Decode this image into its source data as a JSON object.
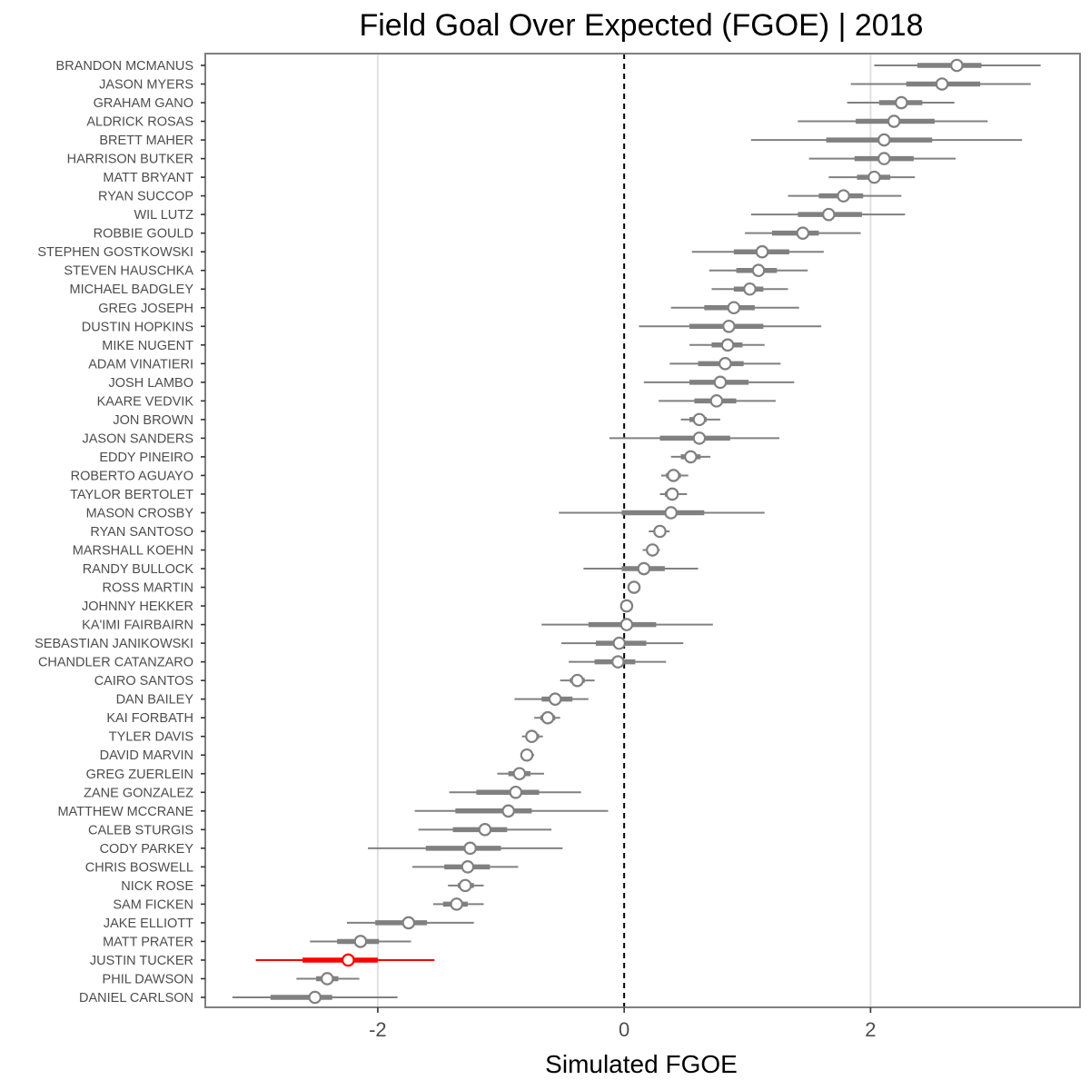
{
  "chart_data": {
    "type": "scatter",
    "title": "Field Goal Over Expected (FGOE) | 2018",
    "xlabel": "Simulated FGOE",
    "ylabel": "",
    "xlim": [
      -3.4,
      3.7
    ],
    "x_ticks": [
      {
        "value": -2,
        "label": "-2"
      },
      {
        "value": 0,
        "label": "0"
      },
      {
        "value": 2,
        "label": "2"
      }
    ],
    "reference_line": {
      "x": 0,
      "style": "dashed"
    },
    "grid": "vertical major",
    "colors": {
      "default": "#808080",
      "highlight": "#ff0000",
      "point_fill": "#ffffff",
      "frame": "#7f7f7f",
      "grid": "#e0e0e0"
    },
    "highlight_player": "JUSTIN TUCKER",
    "series_encoding": "point = median, thick bar = inner interval, thin line = outer interval",
    "players": [
      {
        "name": "BRANDON MCMANUS",
        "median": 2.7,
        "inner": [
          2.38,
          2.9
        ],
        "outer": [
          2.03,
          3.38
        ]
      },
      {
        "name": "JASON MYERS",
        "median": 2.58,
        "inner": [
          2.29,
          2.89
        ],
        "outer": [
          1.84,
          3.3
        ]
      },
      {
        "name": "GRAHAM GANO",
        "median": 2.25,
        "inner": [
          2.07,
          2.42
        ],
        "outer": [
          1.81,
          2.68
        ]
      },
      {
        "name": "ALDRICK ROSAS",
        "median": 2.19,
        "inner": [
          1.88,
          2.52
        ],
        "outer": [
          1.41,
          2.95
        ]
      },
      {
        "name": "BRETT MAHER",
        "median": 2.11,
        "inner": [
          1.64,
          2.5
        ],
        "outer": [
          1.03,
          3.23
        ]
      },
      {
        "name": "HARRISON BUTKER",
        "median": 2.11,
        "inner": [
          1.87,
          2.35
        ],
        "outer": [
          1.5,
          2.69
        ]
      },
      {
        "name": "MATT BRYANT",
        "median": 2.03,
        "inner": [
          1.89,
          2.16
        ],
        "outer": [
          1.66,
          2.36
        ]
      },
      {
        "name": "RYAN SUCCOP",
        "median": 1.78,
        "inner": [
          1.58,
          1.94
        ],
        "outer": [
          1.33,
          2.25
        ]
      },
      {
        "name": "WIL LUTZ",
        "median": 1.66,
        "inner": [
          1.41,
          1.93
        ],
        "outer": [
          1.03,
          2.28
        ]
      },
      {
        "name": "ROBBIE GOULD",
        "median": 1.45,
        "inner": [
          1.2,
          1.58
        ],
        "outer": [
          0.98,
          1.92
        ]
      },
      {
        "name": "STEPHEN GOSTKOWSKI",
        "median": 1.12,
        "inner": [
          0.89,
          1.34
        ],
        "outer": [
          0.55,
          1.62
        ]
      },
      {
        "name": "STEVEN HAUSCHKA",
        "median": 1.09,
        "inner": [
          0.91,
          1.24
        ],
        "outer": [
          0.69,
          1.49
        ]
      },
      {
        "name": "MICHAEL BADGLEY",
        "median": 1.02,
        "inner": [
          0.89,
          1.13
        ],
        "outer": [
          0.71,
          1.33
        ]
      },
      {
        "name": "GREG JOSEPH",
        "median": 0.89,
        "inner": [
          0.65,
          1.06
        ],
        "outer": [
          0.38,
          1.42
        ]
      },
      {
        "name": "DUSTIN HOPKINS",
        "median": 0.85,
        "inner": [
          0.53,
          1.13
        ],
        "outer": [
          0.12,
          1.6
        ]
      },
      {
        "name": "MIKE NUGENT",
        "median": 0.84,
        "inner": [
          0.71,
          0.96
        ],
        "outer": [
          0.53,
          1.14
        ]
      },
      {
        "name": "ADAM VINATIERI",
        "median": 0.82,
        "inner": [
          0.6,
          0.97
        ],
        "outer": [
          0.37,
          1.27
        ]
      },
      {
        "name": "JOSH LAMBO",
        "median": 0.78,
        "inner": [
          0.53,
          1.01
        ],
        "outer": [
          0.16,
          1.38
        ]
      },
      {
        "name": "KAARE VEDVIK",
        "median": 0.75,
        "inner": [
          0.57,
          0.91
        ],
        "outer": [
          0.28,
          1.23
        ]
      },
      {
        "name": "JON BROWN",
        "median": 0.61,
        "inner": [
          0.53,
          0.67
        ],
        "outer": [
          0.46,
          0.78
        ]
      },
      {
        "name": "JASON SANDERS",
        "median": 0.61,
        "inner": [
          0.29,
          0.86
        ],
        "outer": [
          -0.12,
          1.26
        ]
      },
      {
        "name": "EDDY PINEIRO",
        "median": 0.54,
        "inner": [
          0.46,
          0.62
        ],
        "outer": [
          0.38,
          0.7
        ]
      },
      {
        "name": "ROBERTO AGUAYO",
        "median": 0.4,
        "inner": [
          0.34,
          0.46
        ],
        "outer": [
          0.3,
          0.52
        ]
      },
      {
        "name": "TAYLOR BERTOLET",
        "median": 0.39,
        "inner": [
          0.33,
          0.44
        ],
        "outer": [
          0.29,
          0.51
        ]
      },
      {
        "name": "MASON CROSBY",
        "median": 0.38,
        "inner": [
          -0.02,
          0.65
        ],
        "outer": [
          -0.53,
          1.14
        ]
      },
      {
        "name": "RYAN SANTOSO",
        "median": 0.29,
        "inner": [
          0.24,
          0.33
        ],
        "outer": [
          0.2,
          0.37
        ]
      },
      {
        "name": "MARSHALL KOEHN",
        "median": 0.23,
        "inner": [
          0.19,
          0.27
        ],
        "outer": [
          0.15,
          0.29
        ]
      },
      {
        "name": "RANDY BULLOCK",
        "median": 0.16,
        "inner": [
          -0.02,
          0.33
        ],
        "outer": [
          -0.33,
          0.6
        ]
      },
      {
        "name": "ROSS MARTIN",
        "median": 0.08,
        "inner": [
          0.06,
          0.1
        ],
        "outer": [
          0.05,
          0.11
        ]
      },
      {
        "name": "JOHNNY HEKKER",
        "median": 0.02,
        "inner": [
          0.0,
          0.04
        ],
        "outer": [
          -0.01,
          0.05
        ]
      },
      {
        "name": "KA'IMI FAIRBAIRN",
        "median": 0.02,
        "inner": [
          -0.29,
          0.26
        ],
        "outer": [
          -0.67,
          0.72
        ]
      },
      {
        "name": "SEBASTIAN JANIKOWSKI",
        "median": -0.04,
        "inner": [
          -0.23,
          0.18
        ],
        "outer": [
          -0.51,
          0.48
        ]
      },
      {
        "name": "CHANDLER CATANZARO",
        "median": -0.05,
        "inner": [
          -0.24,
          0.09
        ],
        "outer": [
          -0.45,
          0.34
        ]
      },
      {
        "name": "CAIRO SANTOS",
        "median": -0.38,
        "inner": [
          -0.44,
          -0.32
        ],
        "outer": [
          -0.52,
          -0.24
        ]
      },
      {
        "name": "DAN BAILEY",
        "median": -0.56,
        "inner": [
          -0.67,
          -0.42
        ],
        "outer": [
          -0.89,
          -0.29
        ]
      },
      {
        "name": "KAI FORBATH",
        "median": -0.62,
        "inner": [
          -0.68,
          -0.56
        ],
        "outer": [
          -0.73,
          -0.52
        ]
      },
      {
        "name": "TYLER DAVIS",
        "median": -0.75,
        "inner": [
          -0.8,
          -0.69
        ],
        "outer": [
          -0.83,
          -0.66
        ]
      },
      {
        "name": "DAVID MARVIN",
        "median": -0.79,
        "inner": [
          -0.82,
          -0.75
        ],
        "outer": [
          -0.84,
          -0.73
        ]
      },
      {
        "name": "GREG ZUERLEIN",
        "median": -0.85,
        "inner": [
          -0.94,
          -0.76
        ],
        "outer": [
          -1.03,
          -0.65
        ]
      },
      {
        "name": "ZANE GONZALEZ",
        "median": -0.88,
        "inner": [
          -1.2,
          -0.69
        ],
        "outer": [
          -1.42,
          -0.35
        ]
      },
      {
        "name": "MATTHEW MCCRANE",
        "median": -0.94,
        "inner": [
          -1.37,
          -0.75
        ],
        "outer": [
          -1.7,
          -0.13
        ]
      },
      {
        "name": "CALEB STURGIS",
        "median": -1.13,
        "inner": [
          -1.39,
          -0.95
        ],
        "outer": [
          -1.67,
          -0.59
        ]
      },
      {
        "name": "CODY PARKEY",
        "median": -1.25,
        "inner": [
          -1.61,
          -1.0
        ],
        "outer": [
          -2.08,
          -0.5
        ]
      },
      {
        "name": "CHRIS BOSWELL",
        "median": -1.27,
        "inner": [
          -1.46,
          -1.09
        ],
        "outer": [
          -1.72,
          -0.86
        ]
      },
      {
        "name": "NICK ROSE",
        "median": -1.29,
        "inner": [
          -1.35,
          -1.22
        ],
        "outer": [
          -1.43,
          -1.14
        ]
      },
      {
        "name": "SAM FICKEN",
        "median": -1.36,
        "inner": [
          -1.47,
          -1.27
        ],
        "outer": [
          -1.55,
          -1.14
        ]
      },
      {
        "name": "JAKE ELLIOTT",
        "median": -1.75,
        "inner": [
          -2.02,
          -1.6
        ],
        "outer": [
          -2.25,
          -1.22
        ]
      },
      {
        "name": "MATT PRATER",
        "median": -2.14,
        "inner": [
          -2.33,
          -1.99
        ],
        "outer": [
          -2.55,
          -1.73
        ]
      },
      {
        "name": "JUSTIN TUCKER",
        "median": -2.24,
        "inner": [
          -2.61,
          -2.0
        ],
        "outer": [
          -2.99,
          -1.54
        ]
      },
      {
        "name": "PHIL DAWSON",
        "median": -2.41,
        "inner": [
          -2.5,
          -2.32
        ],
        "outer": [
          -2.66,
          -2.15
        ]
      },
      {
        "name": "DANIEL CARLSON",
        "median": -2.51,
        "inner": [
          -2.87,
          -2.37
        ],
        "outer": [
          -3.18,
          -1.84
        ]
      }
    ]
  }
}
